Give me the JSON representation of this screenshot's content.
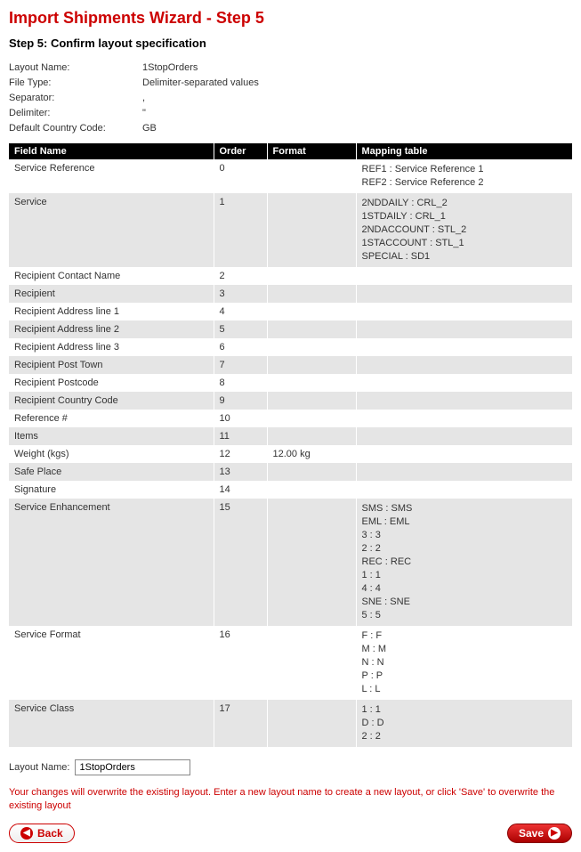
{
  "page": {
    "title": "Import Shipments Wizard - Step 5",
    "subtitle": "Step 5: Confirm layout specification"
  },
  "meta": {
    "layoutName": {
      "label": "Layout Name:",
      "value": "1StopOrders"
    },
    "fileType": {
      "label": "File Type:",
      "value": "Delimiter-separated values"
    },
    "separator": {
      "label": "Separator:",
      "value": ","
    },
    "delimiter": {
      "label": "Delimiter:",
      "value": "\""
    },
    "countryCode": {
      "label": "Default Country Code:",
      "value": "GB"
    }
  },
  "columns": {
    "fieldName": "Field Name",
    "order": "Order",
    "format": "Format",
    "mapping": "Mapping table"
  },
  "rows": [
    {
      "name": "Service Reference",
      "order": "0",
      "format": "",
      "mapping": [
        "REF1 : Service Reference 1",
        "REF2 : Service Reference 2"
      ]
    },
    {
      "name": "Service",
      "order": "1",
      "format": "",
      "mapping": [
        "2NDDAILY : CRL_2",
        "1STDAILY : CRL_1",
        "2NDACCOUNT : STL_2",
        "1STACCOUNT : STL_1",
        "SPECIAL : SD1"
      ]
    },
    {
      "name": "Recipient Contact Name",
      "order": "2",
      "format": "",
      "mapping": []
    },
    {
      "name": "Recipient",
      "order": "3",
      "format": "",
      "mapping": []
    },
    {
      "name": "Recipient Address line 1",
      "order": "4",
      "format": "",
      "mapping": []
    },
    {
      "name": "Recipient Address line 2",
      "order": "5",
      "format": "",
      "mapping": []
    },
    {
      "name": "Recipient Address line 3",
      "order": "6",
      "format": "",
      "mapping": []
    },
    {
      "name": "Recipient Post Town",
      "order": "7",
      "format": "",
      "mapping": []
    },
    {
      "name": "Recipient Postcode",
      "order": "8",
      "format": "",
      "mapping": []
    },
    {
      "name": "Recipient Country Code",
      "order": "9",
      "format": "",
      "mapping": []
    },
    {
      "name": "Reference #",
      "order": "10",
      "format": "",
      "mapping": []
    },
    {
      "name": "Items",
      "order": "11",
      "format": "",
      "mapping": []
    },
    {
      "name": "Weight (kgs)",
      "order": "12",
      "format": "12.00 kg",
      "mapping": []
    },
    {
      "name": "Safe Place",
      "order": "13",
      "format": "",
      "mapping": []
    },
    {
      "name": "Signature",
      "order": "14",
      "format": "",
      "mapping": []
    },
    {
      "name": "Service Enhancement",
      "order": "15",
      "format": "",
      "mapping": [
        "SMS : SMS",
        "EML : EML",
        "3 : 3",
        "2 : 2",
        "REC : REC",
        "1 : 1",
        "4 : 4",
        "SNE : SNE",
        "5 : 5"
      ]
    },
    {
      "name": "Service Format",
      "order": "16",
      "format": "",
      "mapping": [
        "F : F",
        "M : M",
        "N : N",
        "P : P",
        "L : L"
      ]
    },
    {
      "name": "Service Class",
      "order": "17",
      "format": "",
      "mapping": [
        "1 : 1",
        "D : D",
        "2 : 2"
      ]
    }
  ],
  "layoutInput": {
    "label": "Layout Name:",
    "value": "1StopOrders"
  },
  "warning": "Your changes will overwrite the existing layout. Enter a new layout name to create a new layout, or click 'Save' to overwrite the existing layout",
  "buttons": {
    "back": "Back",
    "save": "Save"
  },
  "style": {
    "accent": "#c00",
    "headerBg": "#000",
    "headerFg": "#fff",
    "altRowBg": "#e5e5e5",
    "bodyBg": "#ffffff",
    "fontSize": 11
  }
}
